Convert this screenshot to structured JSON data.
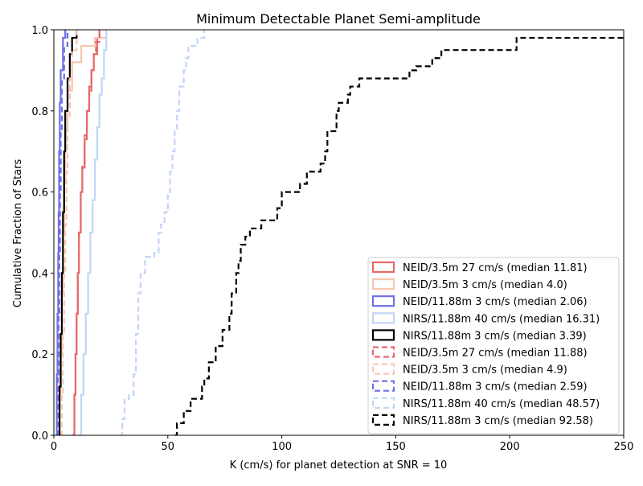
{
  "chart_data": {
    "type": "step-cdf",
    "title": "Minimum Detectable Planet Semi-amplitude",
    "xlabel": "K (cm/s) for planet detection at SNR = 10",
    "ylabel": "Cumulative Fraction of Stars",
    "xlim": [
      0,
      250
    ],
    "ylim": [
      0,
      1.0
    ],
    "xticks": [
      "0",
      "50",
      "100",
      "150",
      "200",
      "250"
    ],
    "yticks": [
      "0.0",
      "0.2",
      "0.4",
      "0.6",
      "0.8",
      "1.0"
    ],
    "grid": false,
    "legend_position": "lower-right",
    "series": [
      {
        "name": "NEID/3.5m 27 cm/s (median 11.81)",
        "color": "#e8686a",
        "dash": "solid",
        "x": [
          8,
          9,
          9.5,
          10,
          10.5,
          11,
          11.8,
          12.5,
          13.5,
          14.5,
          15.5,
          16.5,
          17.5,
          19,
          20
        ],
        "y": [
          0,
          0.1,
          0.2,
          0.3,
          0.4,
          0.5,
          0.6,
          0.66,
          0.73,
          0.8,
          0.85,
          0.9,
          0.94,
          0.98,
          1.0
        ]
      },
      {
        "name": "NEID/3.5m 3 cm/s (median 4.0)",
        "color": "#f8c6b1",
        "dash": "solid",
        "x": [
          2,
          2.5,
          3,
          3.5,
          4,
          4.5,
          5,
          6,
          8,
          12,
          18,
          23
        ],
        "y": [
          0,
          0.1,
          0.2,
          0.35,
          0.5,
          0.62,
          0.75,
          0.85,
          0.92,
          0.96,
          0.98,
          1.0
        ]
      },
      {
        "name": "NEID/11.88m 3 cm/s (median 2.06)",
        "color": "#6f6fe6",
        "dash": "solid",
        "x": [
          1,
          1.3,
          1.6,
          1.9,
          2.1,
          2.3,
          2.6,
          3,
          4,
          5
        ],
        "y": [
          0,
          0.15,
          0.3,
          0.45,
          0.55,
          0.7,
          0.82,
          0.9,
          0.98,
          1.0
        ]
      },
      {
        "name": "NIRS/11.88m 40 cm/s (median 16.31)",
        "color": "#c2d4f8",
        "dash": "solid",
        "x": [
          11,
          12,
          13,
          14,
          15,
          16,
          17,
          18,
          19,
          20,
          21,
          22,
          23
        ],
        "y": [
          0,
          0.1,
          0.2,
          0.3,
          0.4,
          0.5,
          0.58,
          0.68,
          0.76,
          0.84,
          0.88,
          0.95,
          1.0
        ]
      },
      {
        "name": "NIRS/11.88m 3 cm/s (median 3.39)",
        "color": "#000000",
        "dash": "solid",
        "x": [
          2,
          2.5,
          3,
          3.5,
          4,
          4.5,
          5,
          6,
          7,
          8,
          10
        ],
        "y": [
          0,
          0.12,
          0.25,
          0.4,
          0.55,
          0.7,
          0.8,
          0.88,
          0.94,
          0.98,
          1.0
        ]
      },
      {
        "name": "NEID/3.5m 27 cm/s (median 11.88)",
        "color": "#e8686a",
        "dash": "dashed",
        "x": [
          8,
          9,
          9.5,
          10,
          10.5,
          11,
          11.8,
          12.5,
          13.5,
          14.5,
          15.5,
          16.5,
          17.5,
          18.5,
          20
        ],
        "y": [
          0,
          0.1,
          0.2,
          0.3,
          0.4,
          0.5,
          0.6,
          0.67,
          0.74,
          0.8,
          0.86,
          0.9,
          0.94,
          0.97,
          1.0
        ]
      },
      {
        "name": "NEID/3.5m 3 cm/s (median 4.9)",
        "color": "#f8c6b1",
        "dash": "dashed",
        "x": [
          3,
          3.5,
          4,
          4.5,
          5,
          5.5,
          6,
          7,
          8,
          10
        ],
        "y": [
          0,
          0.1,
          0.25,
          0.4,
          0.52,
          0.65,
          0.78,
          0.88,
          0.95,
          1.0
        ]
      },
      {
        "name": "NEID/11.88m 3 cm/s (median 2.59)",
        "color": "#6f6fe6",
        "dash": "dashed",
        "x": [
          1.5,
          1.8,
          2.1,
          2.4,
          2.7,
          3,
          3.5,
          4.5,
          6
        ],
        "y": [
          0,
          0.15,
          0.3,
          0.45,
          0.6,
          0.75,
          0.88,
          0.96,
          1.0
        ]
      },
      {
        "name": "NIRS/11.88m 40 cm/s (median 48.57)",
        "color": "#c2d4f8",
        "dash": "dashed",
        "x": [
          29,
          30,
          31,
          33,
          35,
          36,
          37,
          38,
          40,
          44,
          46,
          47,
          48.5,
          49.5,
          50,
          51,
          52,
          53,
          54,
          55,
          57,
          58,
          59,
          63,
          66
        ],
        "y": [
          0,
          0.04,
          0.09,
          0.1,
          0.15,
          0.25,
          0.35,
          0.4,
          0.44,
          0.45,
          0.5,
          0.52,
          0.55,
          0.56,
          0.6,
          0.65,
          0.7,
          0.75,
          0.8,
          0.86,
          0.9,
          0.93,
          0.96,
          0.98,
          1.0
        ]
      },
      {
        "name": "NIRS/11.88m 3 cm/s (median 92.58)",
        "color": "#000000",
        "dash": "dashed",
        "x": [
          53,
          54,
          57,
          60,
          65,
          66,
          68,
          71,
          74,
          77,
          78,
          80,
          81,
          82,
          84,
          86,
          91,
          98,
          100,
          108,
          111,
          117,
          119,
          120,
          124,
          125,
          129,
          130,
          134,
          138,
          156,
          159,
          166,
          170,
          203,
          250
        ],
        "y": [
          0,
          0.03,
          0.06,
          0.09,
          0.12,
          0.14,
          0.18,
          0.22,
          0.26,
          0.3,
          0.35,
          0.4,
          0.43,
          0.47,
          0.49,
          0.51,
          0.53,
          0.56,
          0.6,
          0.62,
          0.65,
          0.67,
          0.7,
          0.75,
          0.8,
          0.82,
          0.84,
          0.86,
          0.88,
          0.88,
          0.9,
          0.91,
          0.93,
          0.95,
          0.98,
          0.98
        ]
      }
    ]
  }
}
